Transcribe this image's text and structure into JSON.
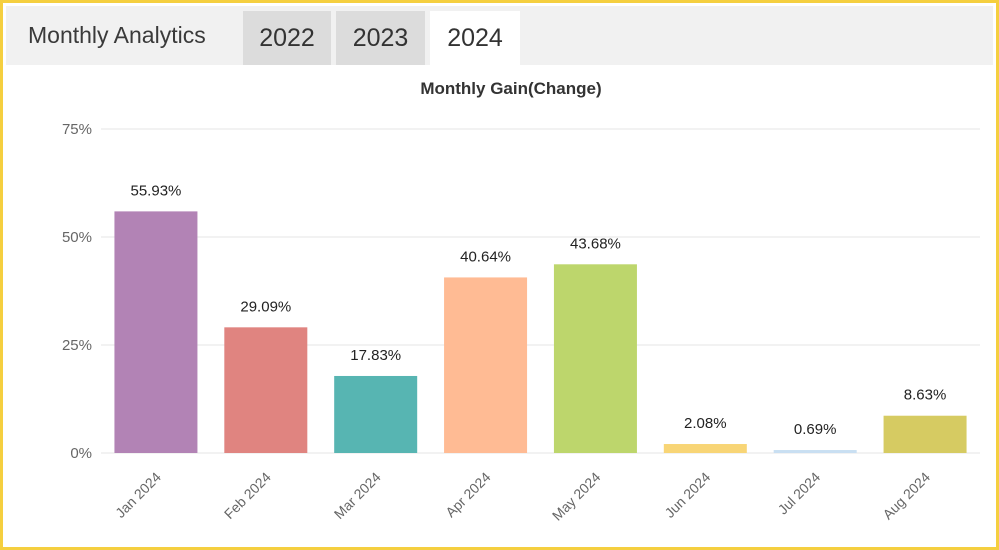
{
  "header": {
    "title": "Monthly Analytics",
    "tabs": [
      {
        "label": "2022",
        "active": false
      },
      {
        "label": "2023",
        "active": false
      },
      {
        "label": "2024",
        "active": true
      }
    ]
  },
  "colors": {
    "frame_border": "#f5cf3f",
    "tab_inactive": "#dcdcdc",
    "tab_active": "#ffffff",
    "gridline": "#e6e6e6"
  },
  "chart_data": {
    "type": "bar",
    "title": "Monthly Gain(Change)",
    "xlabel": "",
    "ylabel": "",
    "categories": [
      "Jan 2024",
      "Feb 2024",
      "Mar 2024",
      "Apr 2024",
      "May 2024",
      "Jun 2024",
      "Jul 2024",
      "Aug 2024"
    ],
    "values": [
      55.93,
      29.09,
      17.83,
      40.64,
      43.68,
      2.08,
      0.69,
      8.63
    ],
    "data_labels": [
      "55.93%",
      "29.09%",
      "17.83%",
      "40.64%",
      "43.68%",
      "2.08%",
      "0.69%",
      "8.63%"
    ],
    "bar_colors": [
      "#b283b5",
      "#e08480",
      "#57b5b2",
      "#ffbb94",
      "#bdd66c",
      "#f8d576",
      "#c9dff2",
      "#d6cb62"
    ],
    "ylim": [
      0,
      75
    ],
    "yticks": [
      0,
      25,
      50,
      75
    ],
    "ytick_labels": [
      "0%",
      "25%",
      "50%",
      "75%"
    ],
    "grid": true,
    "legend": "none"
  }
}
